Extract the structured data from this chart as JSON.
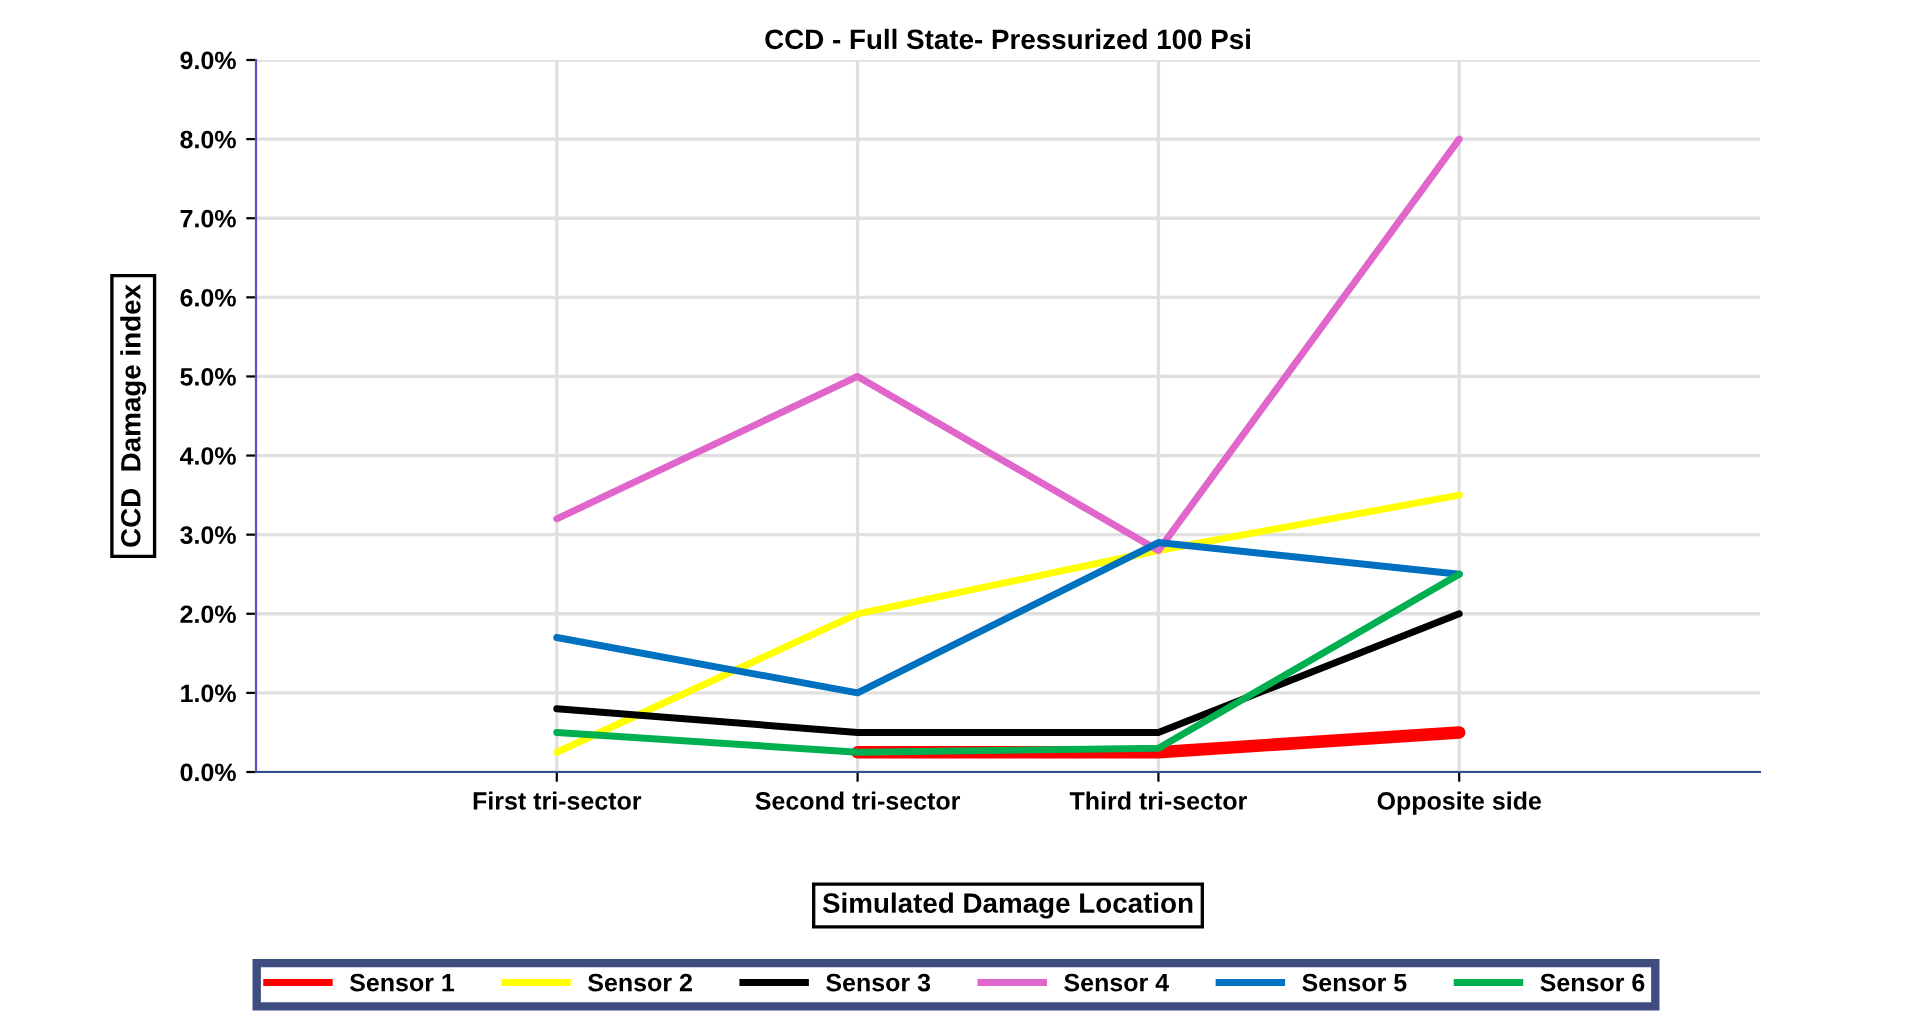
{
  "chart_data": {
    "type": "line",
    "title": "CCD - Full State- Pressurized 100 Psi",
    "xlabel": "Simulated Damage Location",
    "ylabel": "CCD  Damage index",
    "categories": [
      "First tri-sector",
      "Second tri-sector",
      "Third tri-sector",
      "Opposite side"
    ],
    "series": [
      {
        "name": "Sensor 1",
        "color": "#ff0000",
        "values": [
          null,
          0.25,
          0.25,
          0.5
        ]
      },
      {
        "name": "Sensor 2",
        "color": "#ffff00",
        "values": [
          0.25,
          2.0,
          2.8,
          3.5
        ]
      },
      {
        "name": "Sensor 3",
        "color": "#000000",
        "values": [
          0.8,
          0.5,
          0.5,
          2.0
        ]
      },
      {
        "name": "Sensor 4",
        "color": "#e066cc",
        "values": [
          3.2,
          5.0,
          2.8,
          8.0
        ]
      },
      {
        "name": "Sensor 5",
        "color": "#0070c0",
        "values": [
          1.7,
          1.0,
          2.9,
          2.5
        ]
      },
      {
        "name": "Sensor 6",
        "color": "#00b050",
        "values": [
          0.5,
          0.25,
          0.3,
          2.5
        ]
      }
    ],
    "ylim": [
      0,
      9
    ],
    "yticks": [
      {
        "value": 0,
        "label": "0.0%"
      },
      {
        "value": 1,
        "label": "1.0%"
      },
      {
        "value": 2,
        "label": "2.0%"
      },
      {
        "value": 3,
        "label": "3.0%"
      },
      {
        "value": 4,
        "label": "4.0%"
      },
      {
        "value": 5,
        "label": "5.0%"
      },
      {
        "value": 6,
        "label": "6.0%"
      },
      {
        "value": 7,
        "label": "7.0%"
      },
      {
        "value": 8,
        "label": "8.0%"
      },
      {
        "value": 9,
        "label": "9.0%"
      }
    ],
    "grid": true,
    "legend": "bottom",
    "marker": "none",
    "line_style": "solid"
  }
}
